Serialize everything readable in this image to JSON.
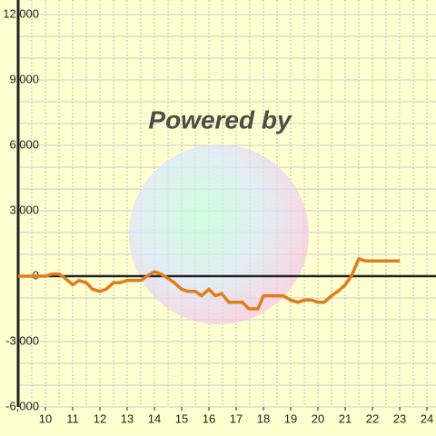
{
  "chart_data": {
    "type": "line",
    "watermark": "Powered by",
    "x": [
      9.0,
      10.0,
      10.27,
      10.5,
      10.73,
      11.0,
      11.23,
      11.5,
      11.73,
      12.0,
      12.23,
      12.5,
      12.73,
      13.0,
      13.5,
      13.73,
      14.0,
      14.23,
      14.5,
      14.73,
      15.0,
      15.23,
      15.5,
      15.73,
      16.0,
      16.23,
      16.47,
      16.73,
      17.0,
      17.23,
      17.47,
      17.8,
      18.0,
      18.5,
      18.73,
      19.0,
      19.27,
      19.5,
      19.77,
      20.0,
      20.23,
      20.5,
      20.73,
      21.0,
      21.23,
      21.5,
      21.73,
      22.0,
      23.0
    ],
    "series": [
      {
        "color": "#e07c1c",
        "values": [
          0,
          0,
          100,
          100,
          -100,
          -400,
          -200,
          -300,
          -600,
          -700,
          -600,
          -300,
          -300,
          -200,
          -200,
          0,
          200,
          100,
          -100,
          -300,
          -600,
          -700,
          -700,
          -900,
          -600,
          -900,
          -800,
          -1200,
          -1200,
          -1200,
          -1500,
          -1500,
          -900,
          -900,
          -900,
          -1100,
          -1200,
          -1100,
          -1100,
          -1200,
          -1200,
          -900,
          -700,
          -400,
          0,
          800,
          700,
          700,
          700
        ]
      }
    ],
    "xlim": [
      9,
      24.333
    ],
    "ylim": [
      -6000,
      12000
    ],
    "xticks": [
      10,
      11,
      12,
      13,
      14,
      15,
      16,
      17,
      18,
      19,
      20,
      21,
      22,
      23,
      24
    ],
    "xgrid": [
      9.5,
      10,
      10.5,
      11,
      11.5,
      12,
      12.5,
      13,
      13.5,
      14,
      14.5,
      15,
      15.5,
      16,
      16.5,
      17,
      17.5,
      18,
      18.5,
      19,
      19.5,
      20,
      20.5,
      21,
      21.5,
      22,
      22.5,
      23,
      23.5,
      24
    ],
    "yticks": [
      {
        "value": -6000,
        "label": "-6,000"
      },
      {
        "value": -3000,
        "label": "-3,000"
      },
      0,
      {
        "value": 3000,
        "label": "3,000"
      },
      {
        "value": 6000,
        "label": "6,000"
      },
      {
        "value": 9000,
        "label": "9,000"
      },
      {
        "value": 12000,
        "label": "12,000"
      }
    ],
    "ygrid": [
      -5000,
      -4000,
      -2000,
      -1000,
      1000,
      2000,
      4000,
      5000,
      7000,
      8000,
      10000,
      11000
    ],
    "grid": true
  }
}
